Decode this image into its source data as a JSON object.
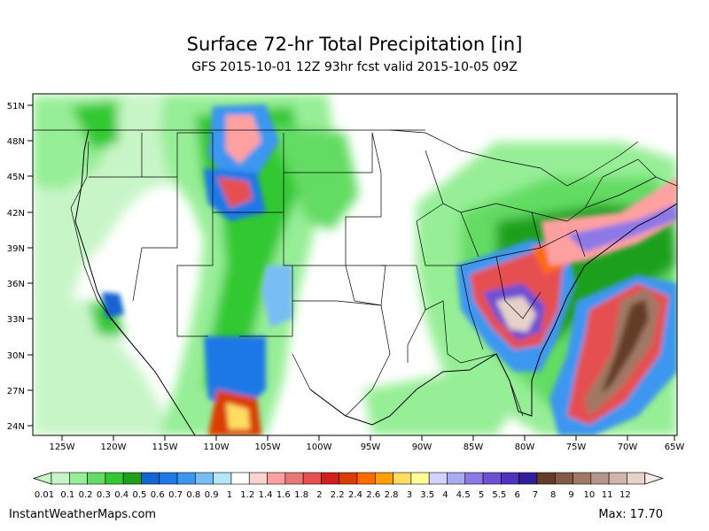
{
  "title": "Surface 72-hr Total Precipitation [in]",
  "subtitle": "GFS 2015-10-01 12Z 93hr fcst valid 2015-10-05 09Z",
  "lat_labels": [
    "51N",
    "48N",
    "45N",
    "42N",
    "39N",
    "36N",
    "33N",
    "30N",
    "27N",
    "24N"
  ],
  "lon_labels": [
    "125W",
    "120W",
    "115W",
    "110W",
    "105W",
    "100W",
    "95W",
    "90W",
    "85W",
    "80W",
    "75W",
    "70W",
    "65W"
  ],
  "colorbar": {
    "labels": [
      "0.01",
      "0.1",
      "0.2",
      "0.3",
      "0.4",
      "0.5",
      "0.6",
      "0.7",
      "0.8",
      "0.9",
      "1",
      "1.2",
      "1.4",
      "1.6",
      "1.8",
      "2",
      "2.2",
      "2.4",
      "2.6",
      "2.8",
      "3",
      "3.5",
      "4",
      "4.5",
      "5",
      "5.5",
      "6",
      "7",
      "8",
      "9",
      "10",
      "11",
      "12"
    ],
    "colors": [
      "#c8f5c8",
      "#96ee96",
      "#64dc64",
      "#32c832",
      "#1ea01e",
      "#1464d2",
      "#1e78e6",
      "#3c96f0",
      "#78bef5",
      "#b4e6fa",
      "#ffffff",
      "#ffd2d2",
      "#ffa0a0",
      "#e67878",
      "#e65050",
      "#d21e1e",
      "#dc3c00",
      "#ff6a00",
      "#ffa000",
      "#ffdc64",
      "#ffff96",
      "#d2d2fa",
      "#aaaaf0",
      "#8c78e6",
      "#6e50d2",
      "#5032be",
      "#321e96",
      "#643c28",
      "#825a46",
      "#a07864",
      "#b4968c",
      "#d2b4aa",
      "#e6d2c8",
      "#f5ebe6"
    ]
  },
  "footer": {
    "site": "InstantWeatherMaps.com",
    "max": "Max: 17.70"
  }
}
